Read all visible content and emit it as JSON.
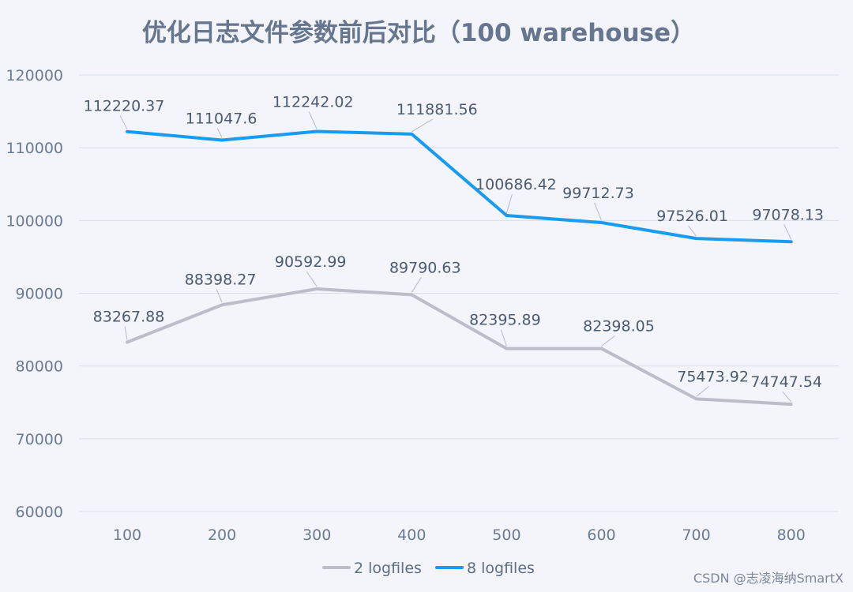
{
  "chart_data": {
    "type": "line",
    "title": "优化日志文件参数前后对比（100 warehouse）",
    "categories": [
      "100",
      "200",
      "300",
      "400",
      "500",
      "600",
      "700",
      "800"
    ],
    "ylim": [
      60000,
      120000
    ],
    "yticks": [
      60000,
      70000,
      80000,
      90000,
      100000,
      110000,
      120000
    ],
    "grid": true,
    "legend_position": "bottom-center",
    "series": [
      {
        "name": "2 logfiles",
        "color": "#bdbdc9",
        "values": [
          83267.88,
          88398.27,
          90592.99,
          89790.63,
          82395.89,
          82398.05,
          75473.92,
          74747.54
        ],
        "labels": [
          "83267.88",
          "88398.27",
          "90592.99",
          "89790.63",
          "82395.89",
          "82398.05",
          "75473.92",
          "74747.54"
        ]
      },
      {
        "name": "8 logfiles",
        "color": "#1a9bf0",
        "values": [
          112220.37,
          111047.6,
          112242.02,
          111881.56,
          100686.42,
          99712.73,
          97526.01,
          97078.13
        ],
        "labels": [
          "112220.37",
          "111047.6",
          "112242.02",
          "111881.56",
          "100686.42",
          "99712.73",
          "97526.01",
          "97078.13"
        ]
      }
    ]
  },
  "watermark": "CSDN @志凌海纳SmartX"
}
